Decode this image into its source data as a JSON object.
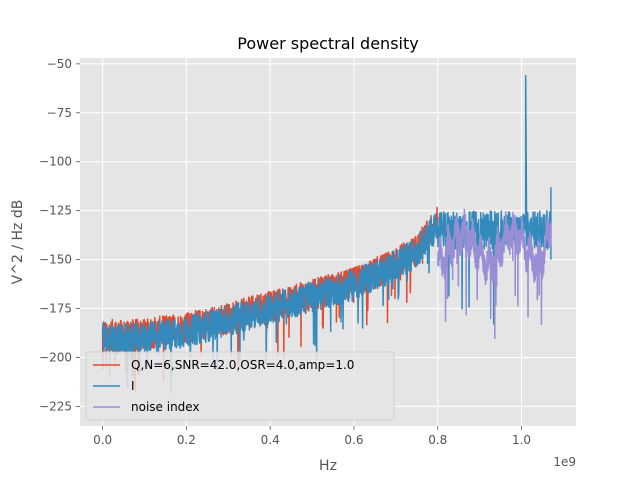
{
  "chart_data": {
    "type": "line",
    "title": "Power spectral density",
    "xlabel": "Hz",
    "ylabel": "V^2 / Hz dB",
    "x_offset_label": "1e9",
    "xlim": [
      -0.054,
      1.13
    ],
    "ylim": [
      -235,
      -47
    ],
    "x_ticks": [
      0.0,
      0.2,
      0.4,
      0.6,
      0.8,
      1.0
    ],
    "x_tick_labels": [
      "0.0",
      "0.2",
      "0.4",
      "0.6",
      "0.8",
      "1.0"
    ],
    "y_ticks": [
      -225,
      -200,
      -175,
      -150,
      -125,
      -100,
      -75,
      -50
    ],
    "y_tick_labels": [
      "−225",
      "−200",
      "−175",
      "−150",
      "−125",
      "−100",
      "−75",
      "−50"
    ],
    "grid": true,
    "legend_position": "lower-left",
    "colors": {
      "background": "#e5e5e5",
      "grid": "#ffffff",
      "series_q": "#e24a33",
      "series_i": "#348abd",
      "series_noise": "#988ed5"
    },
    "series": [
      {
        "name": "Q,N=6,SNR=42.0,OSR=4.0,amp=1.0",
        "color": "#e24a33",
        "x": [
          0.0,
          0.05,
          0.1,
          0.2,
          0.3,
          0.4,
          0.5,
          0.6,
          0.7,
          0.75,
          0.8
        ],
        "y": [
          -188,
          -189,
          -188,
          -185,
          -180,
          -174,
          -168,
          -162,
          -152,
          -145,
          -130
        ]
      },
      {
        "name": "I",
        "color": "#348abd",
        "x": [
          0.0,
          0.05,
          0.1,
          0.2,
          0.3,
          0.4,
          0.5,
          0.6,
          0.7,
          0.75,
          0.8,
          1.01,
          1.07
        ],
        "y": [
          -190,
          -191,
          -190,
          -187,
          -181,
          -175,
          -169,
          -163,
          -153,
          -146,
          -131,
          -56,
          -113
        ]
      },
      {
        "name": "noise index",
        "color": "#988ed5",
        "x": [
          0.8,
          0.85,
          0.9,
          0.95,
          1.0,
          1.05,
          1.07
        ],
        "y": [
          -135,
          -137,
          -136,
          -137,
          -136,
          -135,
          -125
        ]
      }
    ]
  }
}
